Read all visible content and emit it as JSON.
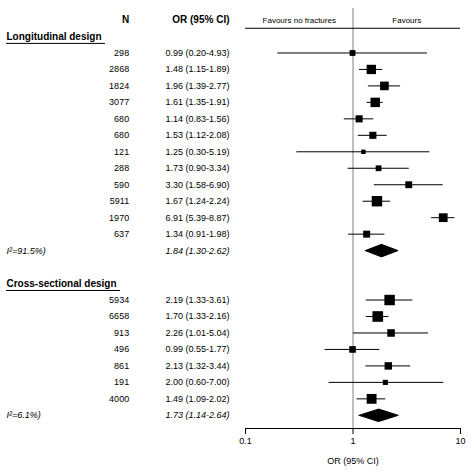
{
  "chart_data": {
    "type": "forest",
    "log": "x",
    "xlim": [
      0.1,
      10
    ],
    "xticks": [
      0.1,
      1,
      10
    ],
    "xlabel": "OR (95% CI)",
    "reference_line": 1,
    "headers": [
      "N",
      "OR (95% CI)"
    ],
    "annotations": [
      "Favours no fractures",
      "Favours"
    ],
    "sections": [
      {
        "label": "Longitudinal design",
        "n": [
          298,
          2868,
          1824,
          3077,
          680,
          680,
          121,
          288,
          590,
          5911,
          1970,
          637
        ],
        "or": [
          0.99,
          1.48,
          1.96,
          1.61,
          1.14,
          1.53,
          1.25,
          1.73,
          3.3,
          1.67,
          6.91,
          1.34
        ],
        "lower": [
          0.2,
          1.15,
          1.39,
          1.35,
          0.83,
          1.12,
          0.3,
          0.9,
          1.58,
          1.24,
          5.39,
          0.91
        ],
        "upper": [
          4.93,
          1.89,
          2.77,
          1.91,
          1.56,
          2.08,
          5.19,
          3.34,
          6.9,
          2.24,
          8.87,
          1.98
        ],
        "value_labels": [
          "0.99 (0.20-4.93)",
          "1.48 (1.15-1.89)",
          "1.96 (1.39-2.77)",
          "1.61 (1.35-1.91)",
          "1.14 (0.83-1.56)",
          "1.53 (1.12-2.08)",
          "1.25 (0.30-5.19)",
          "1.73 (0.90-3.34)",
          "3.30 (1.58-6.90)",
          "1.67 (1.24-2.24)",
          "6.91 (5.39-8.87)",
          "1.34 (0.91-1.98)"
        ],
        "summary": {
          "label": "I²=91.5%)",
          "or": 1.84,
          "lower": 1.3,
          "upper": 2.62,
          "value_label": "1.84 (1.30-2.62)"
        }
      },
      {
        "label": "Cross-sectional design",
        "n": [
          5934,
          6658,
          913,
          496,
          861,
          191,
          4000
        ],
        "or": [
          2.19,
          1.7,
          2.26,
          0.99,
          2.13,
          2.0,
          1.49
        ],
        "lower": [
          1.33,
          1.33,
          1.01,
          0.55,
          1.32,
          0.6,
          1.09
        ],
        "upper": [
          3.61,
          2.16,
          5.04,
          1.77,
          3.44,
          7.0,
          2.02
        ],
        "value_labels": [
          "2.19 (1.33-3.61)",
          "1.70 (1.33-2.16)",
          "2.26 (1.01-5.04)",
          "0.99 (0.55-1.77)",
          "2.13 (1.32-3.44)",
          "2.00 (0.60-7.00)",
          "1.49 (1.09-2.02)"
        ],
        "summary": {
          "label": "I²=6.1%)",
          "or": 1.73,
          "lower": 1.14,
          "upper": 2.64,
          "value_label": "1.73 (1.14-2.64)"
        }
      }
    ]
  }
}
